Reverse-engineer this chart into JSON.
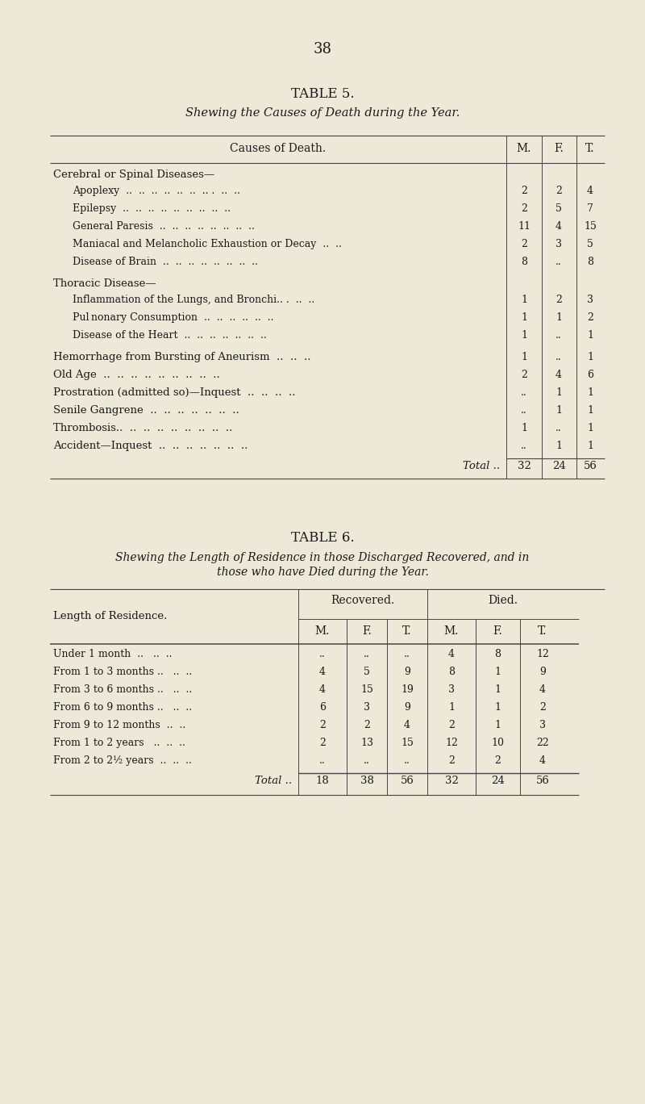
{
  "page_number": "38",
  "bg_color": "#ede8d8",
  "text_color": "#1a1a1a",
  "table5": {
    "title": "TABLE 5.",
    "subtitle": "Shewing the Causes of Death during the Year.",
    "header_label": "Causes of Death.",
    "col_headers": [
      "M.",
      "F.",
      "T."
    ],
    "sections": [
      {
        "section_header": "Cerebral or Spinal Diseases—",
        "rows": [
          [
            "Apoplexy  ..  ..  ..  ..  ..  ..  .. .  ..  ..",
            "2",
            "2",
            "4"
          ],
          [
            "Epilepsy  ..  ..  ..  ..  ..  ..  ..  ..  ..",
            "2",
            "5",
            "7"
          ],
          [
            "General Paresis  ..  ..  ..  ..  ..  ..  ..  ..",
            "11",
            "4",
            "15"
          ],
          [
            "Maniacal and Melancholic Exhaustion or Decay  ..  ..",
            "2",
            "3",
            "5"
          ],
          [
            "Disease of Brain  ..  ..  ..  ..  ..  ..  ..  ..",
            "8",
            "..",
            "8"
          ]
        ]
      },
      {
        "section_header": "Thoracic Disease—",
        "rows": [
          [
            "Inflammation of the Lungs, and Bronchi.. .  ..  ..",
            "1",
            "2",
            "3"
          ],
          [
            "Pul nonary Consumption  ..  ..  ..  ..  ..  ..",
            "1",
            "1",
            "2"
          ],
          [
            "Disease of the Heart  ..  ..  ..  ..  ..  ..  ..",
            "1",
            "..",
            "1"
          ]
        ]
      },
      {
        "section_header": null,
        "rows": [
          [
            "Hemorrhage from Bursting of Aneurism  ..  ..  ..",
            "1",
            "..",
            "1"
          ],
          [
            "Old Age  ..  ..  ..  ..  ..  ..  ..  ..  ..",
            "2",
            "4",
            "6"
          ],
          [
            "Prostration (admitted so)—Inquest  ..  ..  ..  ..",
            "..",
            "1",
            "1"
          ],
          [
            "Senile Gangrene  ..  ..  ..  ..  ..  ..  ..",
            "..",
            "1",
            "1"
          ],
          [
            "Thrombosis..  ..  ..  ..  ..  ..  ..  ..  ..",
            "1",
            "..",
            "1"
          ],
          [
            "Accident—Inquest  ..  ..  ..  ..  ..  ..  ..",
            "..",
            "1",
            "1"
          ]
        ]
      }
    ],
    "total_row": [
      "Total ..",
      "32",
      "24",
      "56"
    ]
  },
  "table6": {
    "title": "TABLE 6.",
    "subtitle_line1": "Shewing the Length of Residence in those Discharged Recovered, and in",
    "subtitle_line2": "those who have Died during the Year.",
    "header_label": "Length of Residence.",
    "group_headers": [
      "Recovered.",
      "Died."
    ],
    "sub_col_headers": [
      "M.",
      "F.",
      "T.",
      "M.",
      "F.",
      "T."
    ],
    "rows": [
      [
        "Under 1 month  ..   ..  ..",
        "..",
        "..",
        "..",
        "4",
        "8",
        "12"
      ],
      [
        "From 1 to 3 months ..   ..  ..",
        "4",
        "5",
        "9",
        "8",
        "1",
        "9"
      ],
      [
        "From 3 to 6 months ..   ..  ..",
        "4",
        "15",
        "19",
        "3",
        "1",
        "4"
      ],
      [
        "From 6 to 9 months ..   ..  ..",
        "6",
        "3",
        "9",
        "1",
        "1",
        "2"
      ],
      [
        "From 9 to 12 months  ..  ..",
        "2",
        "2",
        "4",
        "2",
        "1",
        "3"
      ],
      [
        "From 1 to 2 years   ..  ..  ..",
        "2",
        "13",
        "15",
        "12",
        "10",
        "22"
      ],
      [
        "From 2 to 2½ years  ..  ..  ..",
        "..",
        "..",
        "..",
        "2",
        "2",
        "4"
      ]
    ],
    "total_row": [
      "Total ..",
      "18",
      "38",
      "56",
      "32",
      "24",
      "56"
    ]
  }
}
